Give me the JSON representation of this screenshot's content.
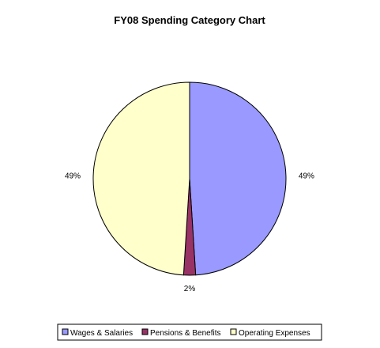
{
  "chart_data": {
    "type": "pie",
    "title": "FY08 Spending Category Chart",
    "slices": [
      {
        "label": "Wages & Salaries",
        "value": 49,
        "display": "49%",
        "color": "#9999FF"
      },
      {
        "label": "Pensions & Benefits",
        "value": 2,
        "display": "2%",
        "color": "#993366"
      },
      {
        "label": "Operating Expenses",
        "value": 49,
        "display": "49%",
        "color": "#FFFFCC"
      }
    ],
    "start_angle": "12 o'clock",
    "direction": "clockwise",
    "legend_position": "bottom"
  }
}
